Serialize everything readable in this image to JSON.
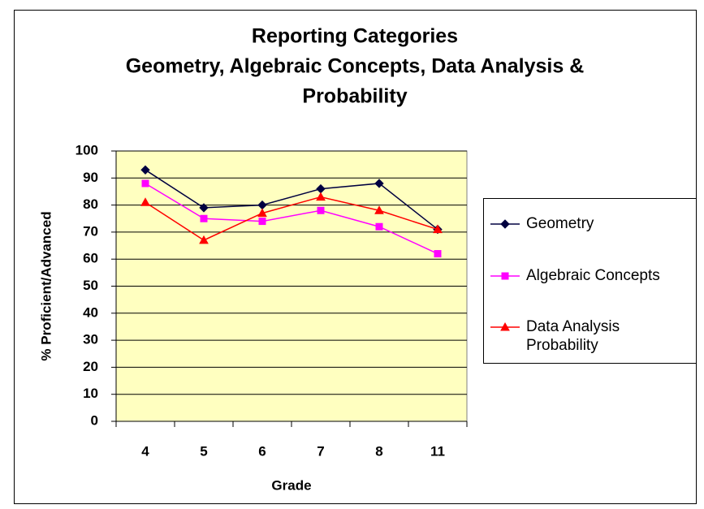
{
  "chart_data": {
    "type": "line",
    "title": [
      "Reporting Categories",
      "Geometry, Algebraic Concepts, Data Analysis &",
      "Probability"
    ],
    "x_label": "Grade",
    "y_label": "% Proficient/Advanced",
    "categories": [
      "4",
      "5",
      "6",
      "7",
      "8",
      "11"
    ],
    "series": [
      {
        "name": "Geometry",
        "color": "#000040",
        "marker": "diamond",
        "values": [
          93,
          79,
          80,
          86,
          88,
          71
        ]
      },
      {
        "name": "Algebraic Concepts",
        "color": "#ff00ff",
        "marker": "square",
        "values": [
          88,
          75,
          74,
          78,
          72,
          62
        ]
      },
      {
        "name": "Data Analysis Probability",
        "color": "#ff0000",
        "marker": "triangle",
        "values": [
          81,
          67,
          77,
          83,
          78,
          71
        ]
      }
    ],
    "ylim": [
      0,
      100
    ],
    "yticks": [
      0,
      10,
      20,
      30,
      40,
      50,
      60,
      70,
      80,
      90,
      100
    ],
    "grid": true,
    "plot_background": "#ffffc0",
    "legend": "right"
  }
}
